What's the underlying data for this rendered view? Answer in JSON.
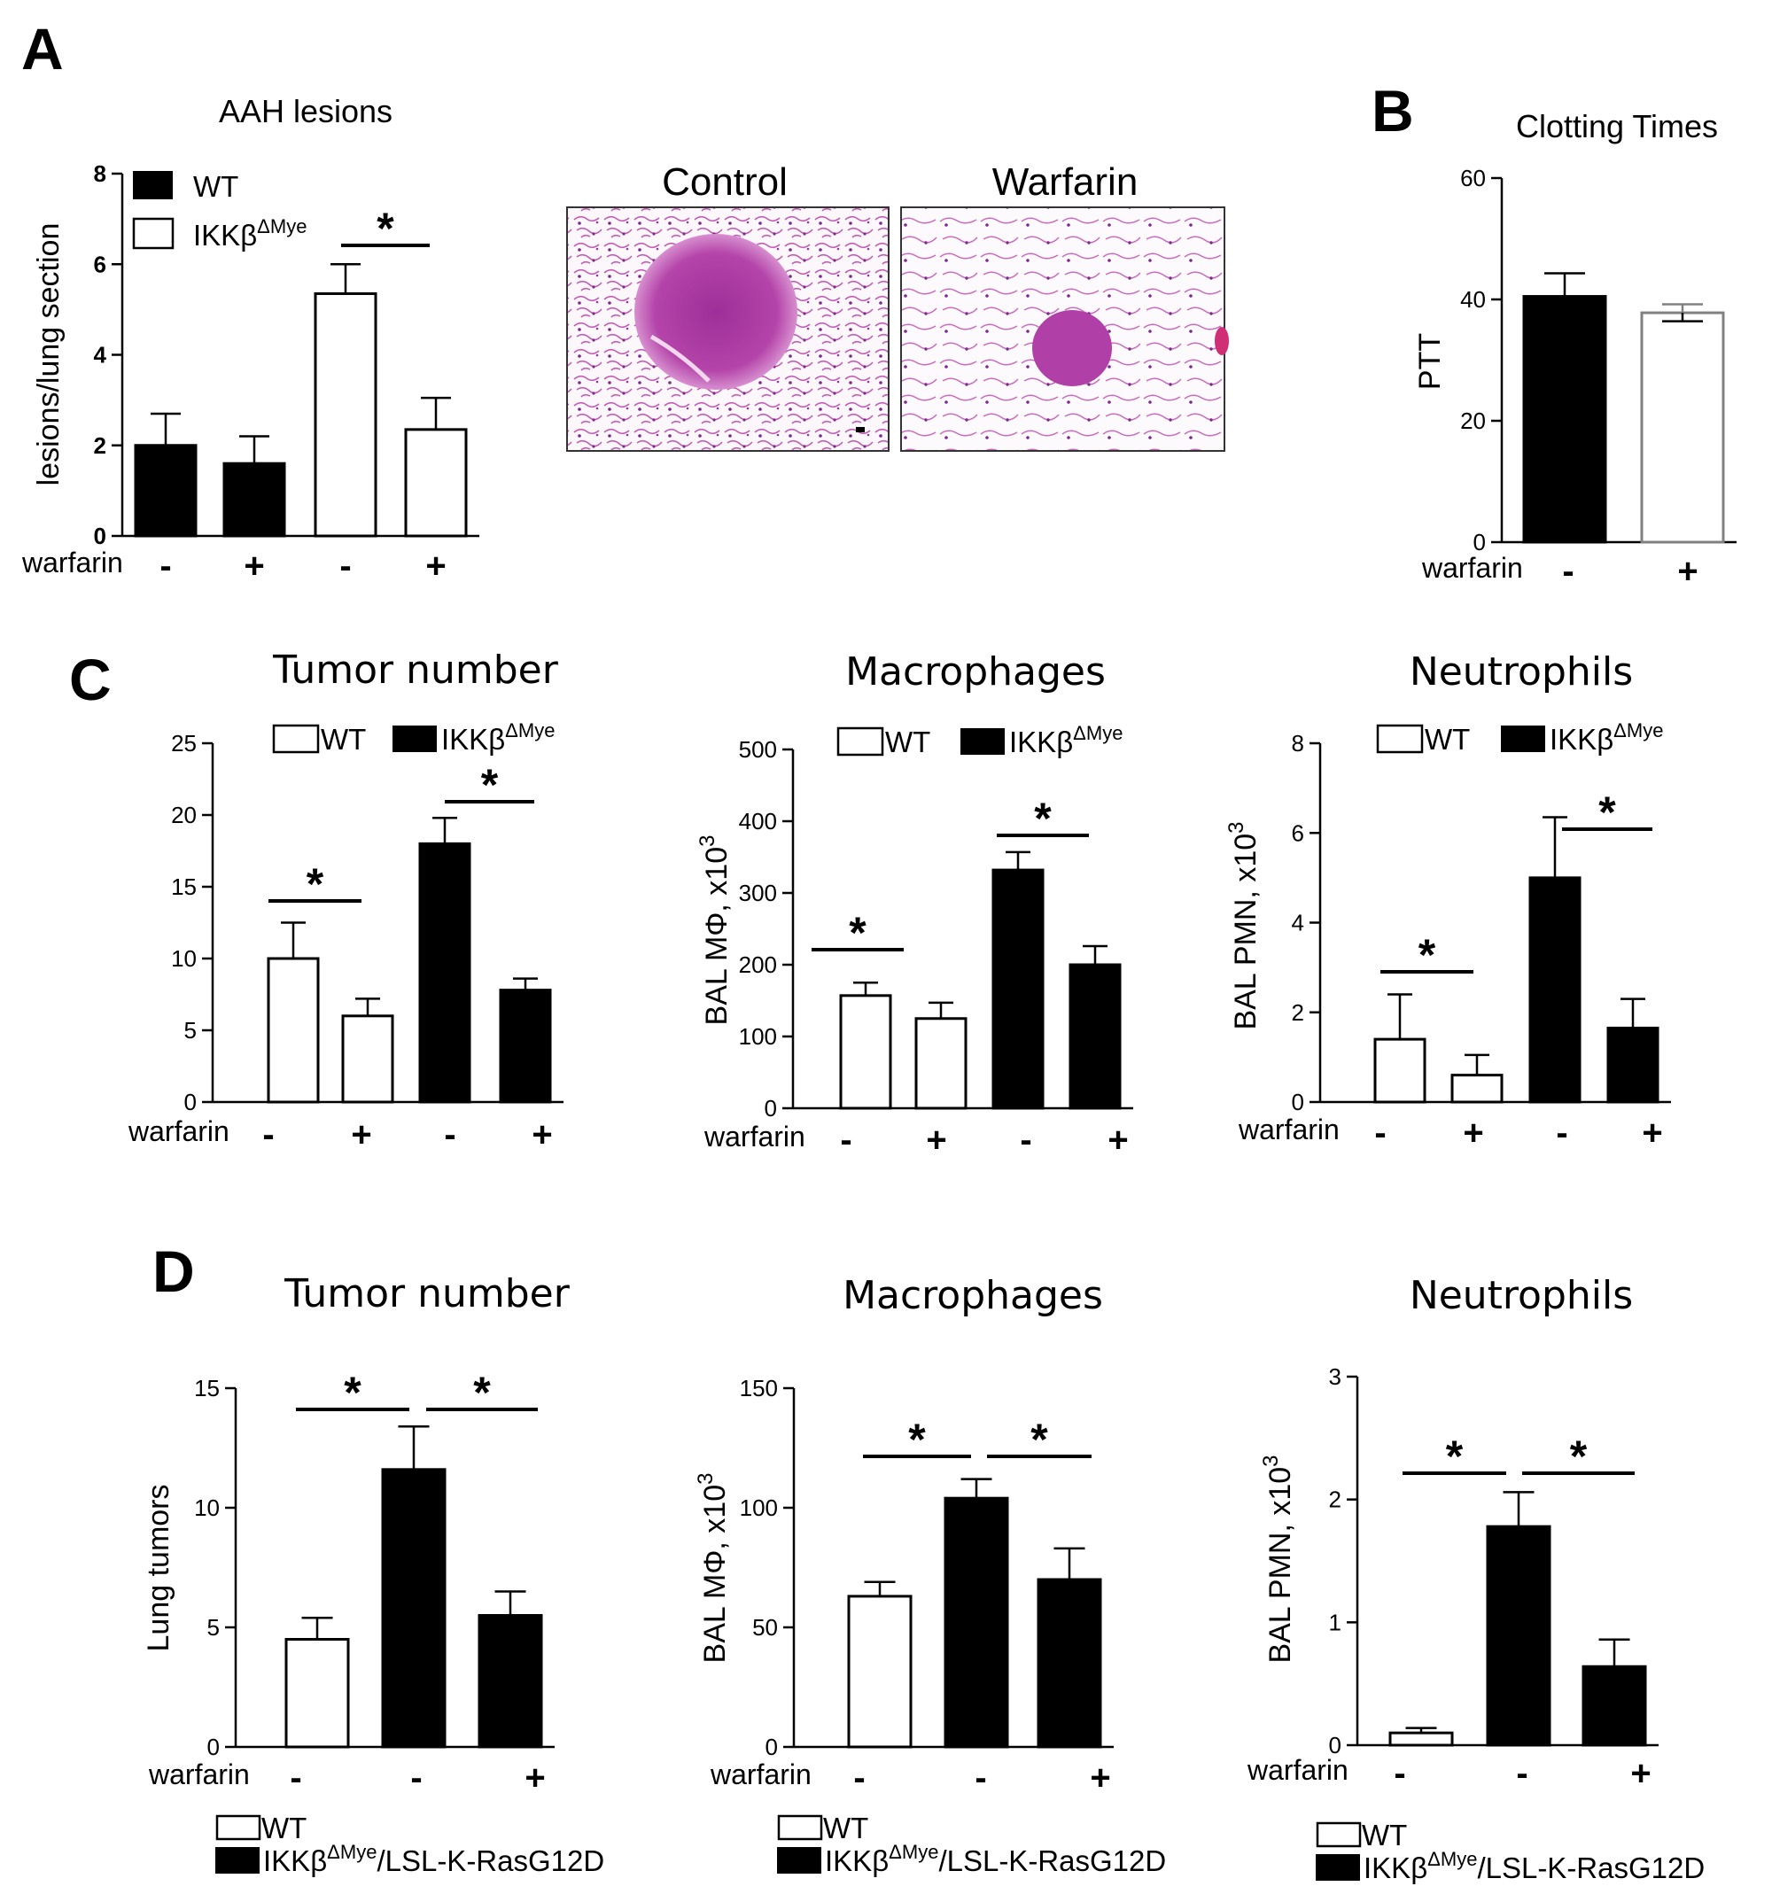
{
  "figure": {
    "panels": {
      "A": {
        "letter": "A",
        "title": "AAH lesions",
        "micrograph_titles": [
          "Control",
          "Warfarin"
        ],
        "x_row_label": "warfarin",
        "signs": [
          "-",
          "+",
          "-",
          "+"
        ]
      },
      "B": {
        "letter": "B",
        "title": "Clotting Times",
        "x_row_label": "warfarin",
        "signs": [
          "-",
          "+"
        ]
      },
      "C": {
        "letter": "C",
        "titles": [
          "Tumor number",
          "Macrophages",
          "Neutrophils"
        ],
        "x_row_label": "warfarin",
        "signs": [
          "-",
          "+",
          "-",
          "+"
        ]
      },
      "D": {
        "letter": "D",
        "titles": [
          "Tumor number",
          "Macrophages",
          "Neutrophils"
        ],
        "x_row_label": "warfarin",
        "signs": [
          "-",
          "-",
          "+"
        ]
      }
    },
    "legend_texts": {
      "wt": "WT",
      "ikk": "IKKβ",
      "ikk_sup": "ΔMye",
      "ras_suffix": "/LSL-K-RasG12D"
    },
    "colors": {
      "black": "#000000",
      "white": "#ffffff",
      "grey_outline": "#808080",
      "stain": "#b0339a"
    }
  },
  "chart_data": [
    {
      "id": "A-AAH",
      "type": "bar",
      "panel": "A",
      "title": "AAH lesions",
      "ylabel": "lesions/lung section",
      "ylim": [
        0,
        8
      ],
      "yticks": [
        0,
        2,
        4,
        6,
        8
      ],
      "series": [
        {
          "name": "WT",
          "fill": "black"
        },
        {
          "name": "IKKβΔMye",
          "fill": "white"
        }
      ],
      "bars": [
        {
          "warfarin": "-",
          "series": "WT",
          "value": 2.0,
          "error": 0.7
        },
        {
          "warfarin": "+",
          "series": "WT",
          "value": 1.6,
          "error": 0.6
        },
        {
          "warfarin": "-",
          "series": "IKKβΔMye",
          "value": 5.35,
          "error": 0.65
        },
        {
          "warfarin": "+",
          "series": "IKKβΔMye",
          "value": 2.35,
          "error": 0.7
        }
      ],
      "significance": [
        {
          "from": 2,
          "to": 3,
          "label": "*"
        }
      ]
    },
    {
      "id": "B-PTT",
      "type": "bar",
      "panel": "B",
      "title": "Clotting Times",
      "ylabel": "PTT",
      "ylim": [
        0,
        60
      ],
      "yticks": [
        0,
        20,
        40,
        60
      ],
      "bars": [
        {
          "warfarin": "-",
          "value": 40.5,
          "error": 3.8,
          "fill": "black"
        },
        {
          "warfarin": "+",
          "value": 37.8,
          "error": 1.4,
          "fill": "white"
        }
      ]
    },
    {
      "id": "C-tumor",
      "type": "bar",
      "panel": "C",
      "title": "Tumor number",
      "ylabel": "",
      "ylim": [
        0,
        25
      ],
      "yticks": [
        0,
        5,
        10,
        15,
        20,
        25
      ],
      "series": [
        {
          "name": "WT",
          "fill": "white"
        },
        {
          "name": "IKKβΔMye",
          "fill": "black"
        }
      ],
      "bars": [
        {
          "warfarin": "-",
          "series": "WT",
          "value": 10.0,
          "error": 2.5
        },
        {
          "warfarin": "+",
          "series": "WT",
          "value": 6.0,
          "error": 1.2
        },
        {
          "warfarin": "-",
          "series": "IKKβΔMye",
          "value": 18.0,
          "error": 1.8
        },
        {
          "warfarin": "+",
          "series": "IKKβΔMye",
          "value": 7.8,
          "error": 0.8
        }
      ],
      "significance": [
        {
          "from": 0,
          "to": 1,
          "label": "*"
        },
        {
          "from": 2,
          "to": 3,
          "label": "*"
        }
      ]
    },
    {
      "id": "C-macro",
      "type": "bar",
      "panel": "C",
      "title": "Macrophages",
      "ylabel": "BAL MΦ, x10",
      "ylabel_sup": "3",
      "ylim": [
        0,
        500
      ],
      "yticks": [
        0,
        100,
        200,
        300,
        400,
        500
      ],
      "series": [
        {
          "name": "WT",
          "fill": "white"
        },
        {
          "name": "IKKβΔMye",
          "fill": "black"
        }
      ],
      "bars": [
        {
          "warfarin": "-",
          "series": "WT",
          "value": 157,
          "error": 18
        },
        {
          "warfarin": "+",
          "series": "WT",
          "value": 125,
          "error": 22
        },
        {
          "warfarin": "-",
          "series": "IKKβΔMye",
          "value": 332,
          "error": 25
        },
        {
          "warfarin": "+",
          "series": "IKKβΔMye",
          "value": 200,
          "error": 26
        }
      ],
      "significance": [
        {
          "from": 0,
          "to": 1,
          "label": "*"
        },
        {
          "from": 2,
          "to": 3,
          "label": "*"
        }
      ]
    },
    {
      "id": "C-neutro",
      "type": "bar",
      "panel": "C",
      "title": "Neutrophils",
      "ylabel": "BAL PMN, x10",
      "ylabel_sup": "3",
      "ylim": [
        0,
        8
      ],
      "yticks": [
        0,
        2,
        4,
        6,
        8
      ],
      "series": [
        {
          "name": "WT",
          "fill": "white"
        },
        {
          "name": "IKKβΔMye",
          "fill": "black"
        }
      ],
      "bars": [
        {
          "warfarin": "-",
          "series": "WT",
          "value": 1.4,
          "error": 1.0
        },
        {
          "warfarin": "+",
          "series": "WT",
          "value": 0.6,
          "error": 0.45
        },
        {
          "warfarin": "-",
          "series": "IKKβΔMye",
          "value": 5.0,
          "error": 1.35
        },
        {
          "warfarin": "+",
          "series": "IKKβΔMye",
          "value": 1.65,
          "error": 0.65
        }
      ],
      "significance": [
        {
          "from": 0,
          "to": 1,
          "label": "*"
        },
        {
          "from": 2,
          "to": 3,
          "label": "*"
        }
      ]
    },
    {
      "id": "D-tumor",
      "type": "bar",
      "panel": "D",
      "title": "Tumor number",
      "ylabel": "Lung tumors",
      "ylim": [
        0,
        15
      ],
      "yticks": [
        0,
        5,
        10,
        15
      ],
      "series": [
        {
          "name": "WT",
          "fill": "white"
        },
        {
          "name": "IKKβΔMye/LSL-K-RasG12D",
          "fill": "black"
        }
      ],
      "bars": [
        {
          "warfarin": "-",
          "series": "WT",
          "value": 4.5,
          "error": 0.9
        },
        {
          "warfarin": "-",
          "series": "IKKβΔMye/LSL-K-RasG12D",
          "value": 11.6,
          "error": 1.8
        },
        {
          "warfarin": "+",
          "series": "IKKβΔMye/LSL-K-RasG12D",
          "value": 5.5,
          "error": 1.0
        }
      ],
      "significance": [
        {
          "from": 0,
          "to": 1,
          "label": "*"
        },
        {
          "from": 1,
          "to": 2,
          "label": "*"
        }
      ]
    },
    {
      "id": "D-macro",
      "type": "bar",
      "panel": "D",
      "title": "Macrophages",
      "ylabel": "BAL MΦ, x10",
      "ylabel_sup": "3",
      "ylim": [
        0,
        150
      ],
      "yticks": [
        0,
        50,
        100,
        150
      ],
      "series": [
        {
          "name": "WT",
          "fill": "white"
        },
        {
          "name": "IKKβΔMye/LSL-K-RasG12D",
          "fill": "black"
        }
      ],
      "bars": [
        {
          "warfarin": "-",
          "series": "WT",
          "value": 63,
          "error": 6
        },
        {
          "warfarin": "-",
          "series": "IKKβΔMye/LSL-K-RasG12D",
          "value": 104,
          "error": 8
        },
        {
          "warfarin": "+",
          "series": "IKKβΔMye/LSL-K-RasG12D",
          "value": 70,
          "error": 13
        }
      ],
      "significance": [
        {
          "from": 0,
          "to": 1,
          "label": "*"
        },
        {
          "from": 1,
          "to": 2,
          "label": "*"
        }
      ]
    },
    {
      "id": "D-neutro",
      "type": "bar",
      "panel": "D",
      "title": "Neutrophils",
      "ylabel": "BAL PMN, x10",
      "ylabel_sup": "3",
      "ylim": [
        0,
        3
      ],
      "yticks": [
        0,
        1,
        2,
        3
      ],
      "series": [
        {
          "name": "WT",
          "fill": "white"
        },
        {
          "name": "IKKβΔMye/LSL-K-RasG12D",
          "fill": "black"
        }
      ],
      "bars": [
        {
          "warfarin": "-",
          "series": "WT",
          "value": 0.1,
          "error": 0.04
        },
        {
          "warfarin": "-",
          "series": "IKKβΔMye/LSL-K-RasG12D",
          "value": 1.78,
          "error": 0.28
        },
        {
          "warfarin": "+",
          "series": "IKKβΔMye/LSL-K-RasG12D",
          "value": 0.64,
          "error": 0.22
        }
      ],
      "significance": [
        {
          "from": 0,
          "to": 1,
          "label": "*"
        },
        {
          "from": 1,
          "to": 2,
          "label": "*"
        }
      ]
    }
  ]
}
